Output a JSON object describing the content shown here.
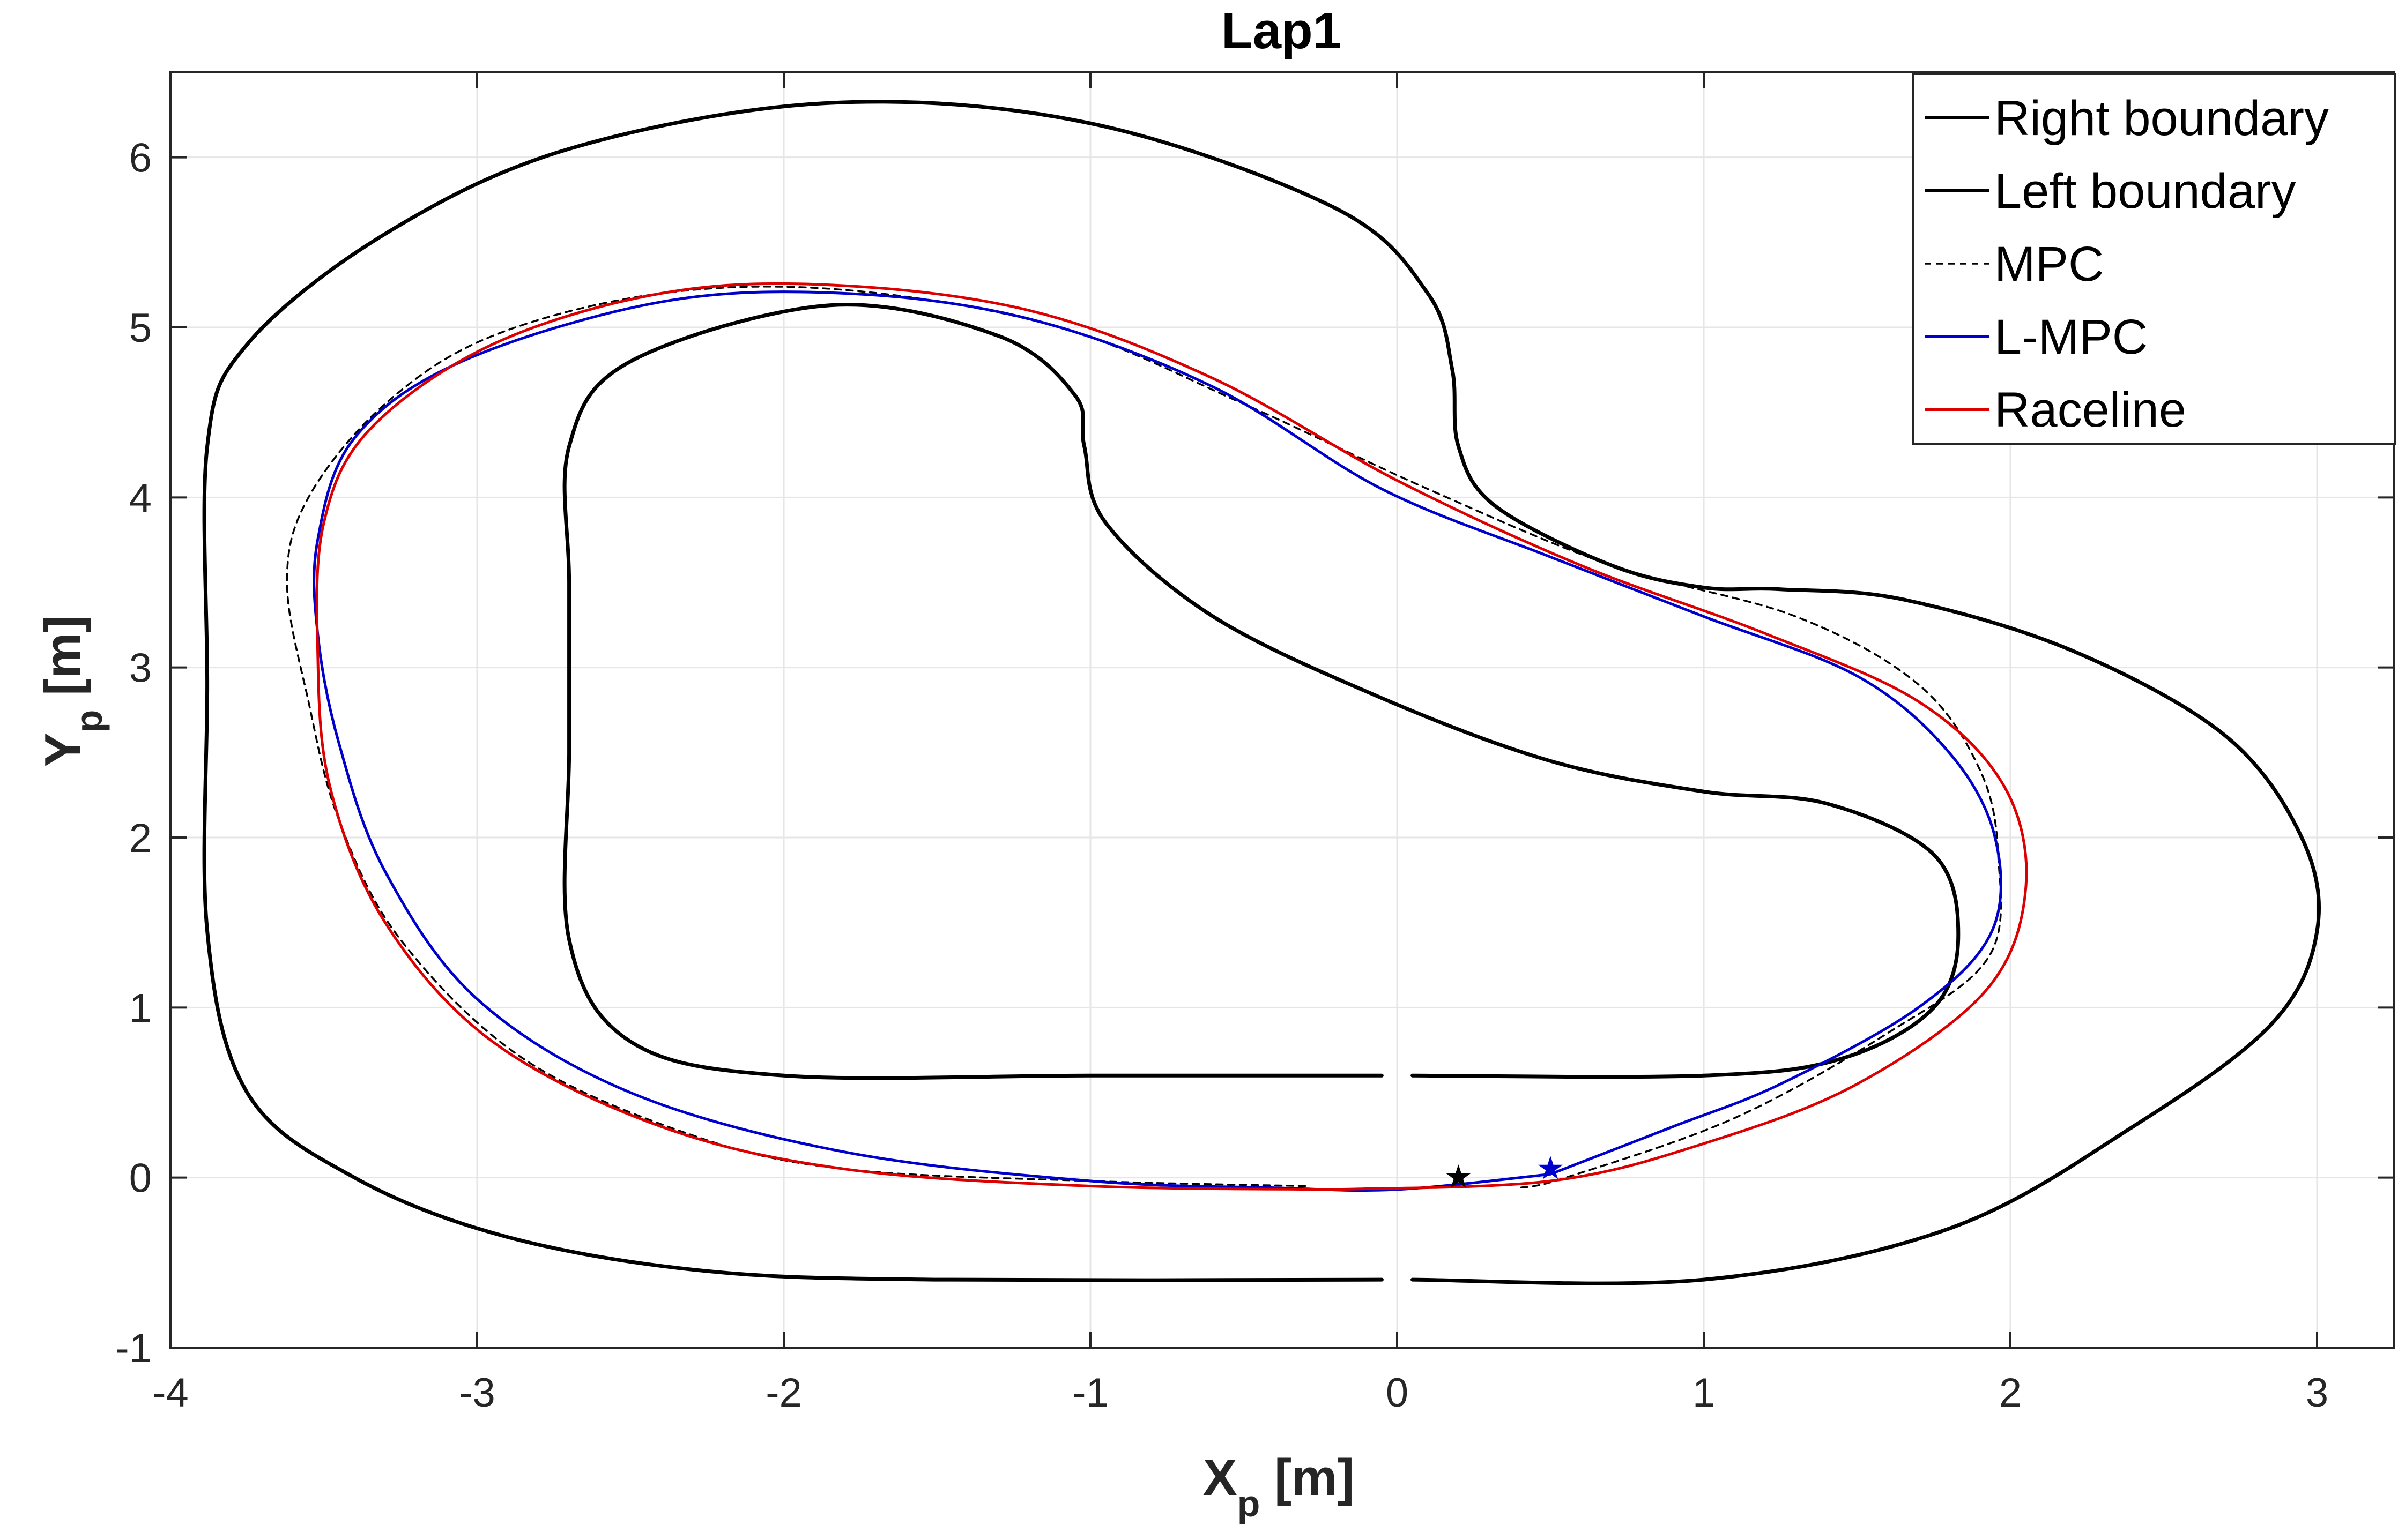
{
  "chart_data": {
    "type": "line",
    "title": "Lap1",
    "xlabel": {
      "main": "X",
      "sub": "p",
      "unit": " [m]"
    },
    "ylabel": {
      "main": "Y",
      "sub": "p",
      "unit": " [m]"
    },
    "xlim": [
      -4,
      3.25
    ],
    "ylim": [
      -1,
      6.5
    ],
    "xticks": [
      -4,
      -3,
      -2,
      -1,
      0,
      1,
      2,
      3
    ],
    "yticks": [
      -1,
      0,
      1,
      2,
      3,
      4,
      5,
      6
    ],
    "xtick_labels": [
      "-4",
      "-3",
      "-2",
      "-1",
      "0",
      "1",
      "2",
      "3"
    ],
    "ytick_labels": [
      "-1",
      "0",
      "1",
      "2",
      "3",
      "4",
      "5",
      "6"
    ],
    "grid": true,
    "legend_position": "top-right",
    "series": [
      {
        "name": "Right boundary",
        "color": "#000000",
        "style": "solid",
        "points": [
          [
            -0.05,
            -0.6
          ],
          [
            -1.5,
            -0.6
          ],
          [
            -2.25,
            -0.55
          ],
          [
            -2.9,
            -0.35
          ],
          [
            -3.4,
            0.0
          ],
          [
            -3.75,
            0.5
          ],
          [
            -3.88,
            1.45
          ],
          [
            -3.88,
            2.9
          ],
          [
            -3.88,
            4.3
          ],
          [
            -3.75,
            4.9
          ],
          [
            -3.3,
            5.55
          ],
          [
            -2.7,
            6.05
          ],
          [
            -1.85,
            6.32
          ],
          [
            -1.0,
            6.2
          ],
          [
            -0.2,
            5.7
          ],
          [
            0.1,
            5.2
          ],
          [
            0.18,
            4.75
          ],
          [
            0.2,
            4.3
          ],
          [
            0.32,
            3.95
          ],
          [
            0.7,
            3.6
          ],
          [
            1.0,
            3.47
          ],
          [
            1.25,
            3.46
          ],
          [
            1.65,
            3.4
          ],
          [
            2.2,
            3.1
          ],
          [
            2.7,
            2.6
          ],
          [
            2.95,
            2.0
          ],
          [
            3.0,
            1.45
          ],
          [
            2.85,
            0.9
          ],
          [
            2.4,
            0.3
          ],
          [
            1.8,
            -0.3
          ],
          [
            1.0,
            -0.6
          ],
          [
            0.05,
            -0.6
          ]
        ]
      },
      {
        "name": "Left boundary",
        "color": "#000000",
        "style": "solid",
        "points": [
          [
            -0.05,
            0.6
          ],
          [
            -1.0,
            0.6
          ],
          [
            -2.0,
            0.6
          ],
          [
            -2.5,
            0.8
          ],
          [
            -2.7,
            1.4
          ],
          [
            -2.7,
            2.5
          ],
          [
            -2.7,
            3.5
          ],
          [
            -2.7,
            4.3
          ],
          [
            -2.5,
            4.8
          ],
          [
            -1.85,
            5.13
          ],
          [
            -1.3,
            4.95
          ],
          [
            -1.05,
            4.6
          ],
          [
            -1.02,
            4.3
          ],
          [
            -0.95,
            3.85
          ],
          [
            -0.6,
            3.3
          ],
          [
            -0.05,
            2.82
          ],
          [
            0.5,
            2.45
          ],
          [
            1.0,
            2.27
          ],
          [
            1.4,
            2.2
          ],
          [
            1.75,
            1.9
          ],
          [
            1.83,
            1.43
          ],
          [
            1.75,
            1.0
          ],
          [
            1.45,
            0.7
          ],
          [
            1.0,
            0.6
          ],
          [
            0.05,
            0.6
          ]
        ]
      },
      {
        "name": "MPC",
        "color": "#000000",
        "style": "dashed",
        "points": [
          [
            -0.3,
            -0.05
          ],
          [
            -1.0,
            -0.02
          ],
          [
            -1.8,
            0.05
          ],
          [
            -2.3,
            0.25
          ],
          [
            -2.85,
            0.7
          ],
          [
            -3.25,
            1.4
          ],
          [
            -3.45,
            2.1
          ],
          [
            -3.55,
            2.8
          ],
          [
            -3.62,
            3.5
          ],
          [
            -3.55,
            4.0
          ],
          [
            -3.3,
            4.55
          ],
          [
            -2.95,
            4.95
          ],
          [
            -2.4,
            5.2
          ],
          [
            -1.8,
            5.22
          ],
          [
            -1.1,
            5.0
          ],
          [
            -0.5,
            4.55
          ],
          [
            0.1,
            4.05
          ],
          [
            0.7,
            3.6
          ],
          [
            1.3,
            3.3
          ],
          [
            1.7,
            2.9
          ],
          [
            1.9,
            2.4
          ],
          [
            1.96,
            1.9
          ],
          [
            1.93,
            1.3
          ],
          [
            1.6,
            0.85
          ],
          [
            1.1,
            0.35
          ],
          [
            0.55,
            0.0
          ],
          [
            0.4,
            -0.06
          ]
        ]
      },
      {
        "name": "L-MPC",
        "color": "#0000cc",
        "style": "solid",
        "points": [
          [
            0.5,
            0.02
          ],
          [
            0.0,
            -0.07
          ],
          [
            -0.4,
            -0.06
          ],
          [
            -1.0,
            -0.02
          ],
          [
            -1.8,
            0.15
          ],
          [
            -2.5,
            0.5
          ],
          [
            -3.0,
            1.05
          ],
          [
            -3.3,
            1.8
          ],
          [
            -3.45,
            2.55
          ],
          [
            -3.52,
            3.2
          ],
          [
            -3.52,
            3.75
          ],
          [
            -3.4,
            4.35
          ],
          [
            -3.05,
            4.8
          ],
          [
            -2.4,
            5.15
          ],
          [
            -1.8,
            5.2
          ],
          [
            -1.2,
            5.05
          ],
          [
            -0.6,
            4.65
          ],
          [
            -0.05,
            4.05
          ],
          [
            0.5,
            3.65
          ],
          [
            1.0,
            3.3
          ],
          [
            1.5,
            2.95
          ],
          [
            1.8,
            2.5
          ],
          [
            1.95,
            2.0
          ],
          [
            1.94,
            1.45
          ],
          [
            1.7,
            1.0
          ],
          [
            1.25,
            0.55
          ],
          [
            0.9,
            0.3
          ],
          [
            0.5,
            0.02
          ]
        ]
      },
      {
        "name": "Raceline",
        "color": "#dd0000",
        "style": "solid",
        "points": [
          [
            -0.2,
            -0.07
          ],
          [
            -1.0,
            -0.05
          ],
          [
            -1.8,
            0.05
          ],
          [
            -2.4,
            0.3
          ],
          [
            -2.95,
            0.8
          ],
          [
            -3.3,
            1.5
          ],
          [
            -3.48,
            2.3
          ],
          [
            -3.52,
            3.1
          ],
          [
            -3.5,
            3.85
          ],
          [
            -3.35,
            4.4
          ],
          [
            -2.95,
            4.9
          ],
          [
            -2.4,
            5.2
          ],
          [
            -1.85,
            5.25
          ],
          [
            -1.2,
            5.1
          ],
          [
            -0.6,
            4.7
          ],
          [
            0.0,
            4.1
          ],
          [
            0.6,
            3.6
          ],
          [
            1.2,
            3.2
          ],
          [
            1.7,
            2.8
          ],
          [
            1.98,
            2.3
          ],
          [
            2.05,
            1.7
          ],
          [
            1.92,
            1.1
          ],
          [
            1.5,
            0.55
          ],
          [
            1.0,
            0.2
          ],
          [
            0.5,
            -0.02
          ],
          [
            -0.2,
            -0.07
          ]
        ]
      }
    ],
    "markers": [
      {
        "name": "start-marker-black",
        "x": 0.2,
        "y": 0.01,
        "symbol": "★",
        "color": "#000000"
      },
      {
        "name": "start-marker-blue",
        "x": 0.5,
        "y": 0.06,
        "symbol": "★",
        "color": "#0000cc"
      }
    ]
  }
}
